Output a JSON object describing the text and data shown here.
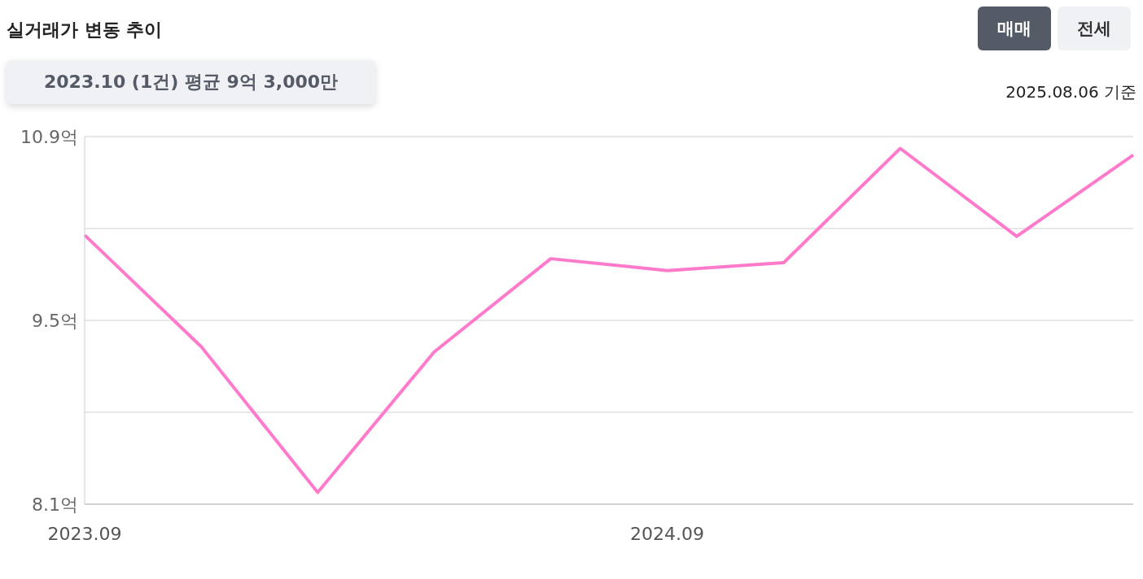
{
  "chart_data": {
    "type": "line",
    "title": "실거래가 변동 추이",
    "categories": [
      "2023.09",
      null,
      null,
      null,
      null,
      "2024.09",
      null,
      null,
      null,
      null
    ],
    "series": [
      {
        "color": "#ff7acb",
        "values": [
          10.15,
          9.3,
          8.19,
          9.26,
          9.97,
          9.88,
          9.94,
          10.81,
          10.14,
          10.76
        ]
      }
    ],
    "ylim": [
      8.1,
      10.9
    ],
    "yticks": [
      {
        "value": 8.1,
        "label": "8.1억"
      },
      {
        "value": 8.8,
        "label": null
      },
      {
        "value": 9.5,
        "label": "9.5억"
      },
      {
        "value": 10.2,
        "label": null
      },
      {
        "value": 10.9,
        "label": "10.9억"
      }
    ],
    "grid": "y",
    "marker": "none",
    "line_style": "solid",
    "annotations": [
      "매매",
      "전세",
      "2025.08.06 기준",
      "2023.10 (1건) 평균 9억 3,000만"
    ]
  }
}
